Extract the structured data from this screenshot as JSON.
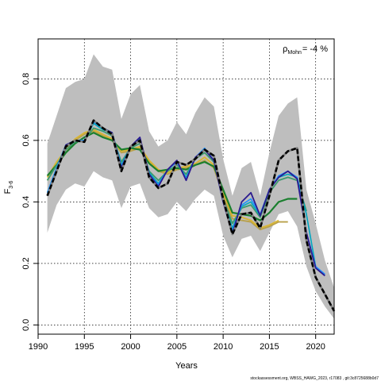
{
  "chart_data": {
    "type": "line",
    "xlabel": "Years",
    "ylabel": "F",
    "ylabel_sub": "3-6",
    "annotation": {
      "rho_symbol": "ρ",
      "rho_sub": "Mohn",
      "value_text": "= -4 %"
    },
    "footer": "stockassessment.org, WBSS_HAWG_2023, r17083 , git:3c8725688b0d7",
    "xlim": [
      1990,
      2022
    ],
    "ylim": [
      -0.03,
      0.93
    ],
    "x_ticks": [
      1990,
      1995,
      2000,
      2005,
      2010,
      2015,
      2020
    ],
    "y_ticks": [
      0.0,
      0.2,
      0.4,
      0.6,
      0.8
    ],
    "y_tick_labels": [
      "0.0",
      "0.2",
      "0.4",
      "0.6",
      "0.8"
    ],
    "grid": true,
    "colors": {
      "band": "#bebebe",
      "base": "#000000",
      "base_highlight": "#7f7f7f",
      "peel1": "#2b1a8f",
      "peel2": "#1e90ff",
      "peel3": "#00a6c0",
      "peel4": "#3c9a6e",
      "peel5": "#1a7f2e",
      "peel6": "#d9b530",
      "peel7": "#b8a04a"
    },
    "band_years": [
      1991,
      1992,
      1993,
      1994,
      1995,
      1996,
      1997,
      1998,
      1999,
      2000,
      2001,
      2002,
      2003,
      2004,
      2005,
      2006,
      2007,
      2008,
      2009,
      2010,
      2011,
      2012,
      2013,
      2014,
      2015,
      2016,
      2017,
      2018,
      2019,
      2020,
      2021,
      2022
    ],
    "band_upper": [
      0.59,
      0.68,
      0.77,
      0.79,
      0.8,
      0.88,
      0.84,
      0.83,
      0.67,
      0.75,
      0.78,
      0.63,
      0.58,
      0.6,
      0.66,
      0.62,
      0.69,
      0.74,
      0.71,
      0.54,
      0.42,
      0.51,
      0.53,
      0.42,
      0.56,
      0.68,
      0.72,
      0.74,
      0.44,
      0.33,
      0.21,
      0.12
    ],
    "band_lower": [
      0.3,
      0.39,
      0.44,
      0.46,
      0.45,
      0.5,
      0.48,
      0.47,
      0.38,
      0.45,
      0.46,
      0.38,
      0.35,
      0.36,
      0.4,
      0.37,
      0.41,
      0.44,
      0.42,
      0.29,
      0.22,
      0.28,
      0.29,
      0.24,
      0.3,
      0.36,
      0.37,
      0.32,
      0.19,
      0.11,
      0.06,
      0.02
    ],
    "series": [
      {
        "key": "peel7",
        "style": "solid",
        "width": 1.8,
        "x": [
          1991,
          1992,
          1993,
          1994,
          1995,
          1996,
          1997,
          1998,
          1999,
          2000,
          2001,
          2002,
          2003,
          2004,
          2005,
          2006,
          2007,
          2008,
          2009,
          2010,
          2011,
          2012,
          2013,
          2014,
          2015,
          2016,
          2017
        ],
        "y": [
          0.47,
          0.52,
          0.56,
          0.6,
          0.62,
          0.63,
          0.615,
          0.6,
          0.56,
          0.565,
          0.575,
          0.53,
          0.5,
          0.49,
          0.505,
          0.51,
          0.52,
          0.535,
          0.51,
          0.42,
          0.345,
          0.34,
          0.335,
          0.31,
          0.32,
          0.335,
          0.335
        ]
      },
      {
        "key": "peel6",
        "style": "solid",
        "width": 1.8,
        "x": [
          1991,
          1992,
          1993,
          1994,
          1995,
          1996,
          1997,
          1998,
          1999,
          2000,
          2001,
          2002,
          2003,
          2004,
          2005,
          2006,
          2007,
          2008,
          2009,
          2010,
          2011,
          2012,
          2013,
          2014,
          2015,
          2016
        ],
        "y": [
          0.48,
          0.53,
          0.57,
          0.605,
          0.625,
          0.635,
          0.62,
          0.605,
          0.565,
          0.57,
          0.58,
          0.535,
          0.505,
          0.495,
          0.51,
          0.515,
          0.525,
          0.545,
          0.52,
          0.43,
          0.355,
          0.35,
          0.34,
          0.315,
          0.325,
          0.34
        ]
      },
      {
        "key": "peel5",
        "style": "solid",
        "width": 2.2,
        "x": [
          1991,
          1992,
          1993,
          1994,
          1995,
          1996,
          1997,
          1998,
          1999,
          2000,
          2001,
          2002,
          2003,
          2004,
          2005,
          2006,
          2007,
          2008,
          2009,
          2010,
          2011,
          2012,
          2013,
          2014,
          2015,
          2016,
          2017,
          2018
        ],
        "y": [
          0.485,
          0.52,
          0.56,
          0.59,
          0.61,
          0.625,
          0.61,
          0.6,
          0.57,
          0.575,
          0.57,
          0.525,
          0.5,
          0.505,
          0.51,
          0.505,
          0.52,
          0.53,
          0.515,
          0.44,
          0.365,
          0.36,
          0.355,
          0.34,
          0.365,
          0.4,
          0.41,
          0.41
        ]
      },
      {
        "key": "peel4",
        "style": "solid",
        "width": 1.8,
        "x": [
          1991,
          1992,
          1993,
          1994,
          1995,
          1996,
          1997,
          1998,
          1999,
          2000,
          2001,
          2002,
          2003,
          2004,
          2005,
          2006,
          2007,
          2008,
          2009,
          2010,
          2011,
          2012,
          2013,
          2014,
          2015,
          2016,
          2017,
          2018,
          2019
        ],
        "y": [
          0.47,
          0.52,
          0.57,
          0.595,
          0.6,
          0.64,
          0.63,
          0.615,
          0.53,
          0.575,
          0.59,
          0.5,
          0.47,
          0.5,
          0.52,
          0.49,
          0.54,
          0.56,
          0.53,
          0.41,
          0.33,
          0.38,
          0.39,
          0.35,
          0.43,
          0.47,
          0.48,
          0.47,
          0.37
        ]
      },
      {
        "key": "peel3",
        "style": "solid",
        "width": 1.6,
        "x": [
          1991,
          1992,
          1993,
          1994,
          1995,
          1996,
          1997,
          1998,
          1999,
          2000,
          2001,
          2002,
          2003,
          2004,
          2005,
          2006,
          2007,
          2008,
          2009,
          2010,
          2011,
          2012,
          2013,
          2014,
          2015,
          2016,
          2017,
          2018,
          2019,
          2020
        ],
        "y": [
          0.43,
          0.51,
          0.585,
          0.6,
          0.6,
          0.655,
          0.635,
          0.625,
          0.52,
          0.58,
          0.6,
          0.495,
          0.46,
          0.505,
          0.53,
          0.48,
          0.545,
          0.57,
          0.535,
          0.405,
          0.315,
          0.385,
          0.4,
          0.355,
          0.44,
          0.48,
          0.49,
          0.48,
          0.36,
          0.19
        ]
      },
      {
        "key": "peel2",
        "style": "solid",
        "width": 1.6,
        "x": [
          1991,
          1992,
          1993,
          1994,
          1995,
          1996,
          1997,
          1998,
          1999,
          2000,
          2001,
          2002,
          2003,
          2004,
          2005,
          2006,
          2007,
          2008,
          2009,
          2010,
          2011,
          2012,
          2013,
          2014,
          2015,
          2016,
          2017,
          2018,
          2019,
          2020,
          2021
        ],
        "y": [
          0.43,
          0.51,
          0.585,
          0.6,
          0.6,
          0.66,
          0.64,
          0.625,
          0.515,
          0.58,
          0.605,
          0.49,
          0.455,
          0.505,
          0.53,
          0.475,
          0.545,
          0.575,
          0.535,
          0.4,
          0.305,
          0.39,
          0.41,
          0.36,
          0.44,
          0.485,
          0.5,
          0.48,
          0.3,
          0.19,
          0.165
        ]
      },
      {
        "key": "peel1",
        "style": "solid",
        "width": 1.8,
        "x": [
          1991,
          1992,
          1993,
          1994,
          1995,
          1996,
          1997,
          1998,
          1999,
          2000,
          2001,
          2002,
          2003,
          2004,
          2005,
          2006,
          2007,
          2008,
          2009,
          2010,
          2011,
          2012,
          2013,
          2014,
          2015,
          2016,
          2017,
          2018,
          2019,
          2020,
          2021
        ],
        "y": [
          0.42,
          0.5,
          0.585,
          0.6,
          0.595,
          0.665,
          0.64,
          0.625,
          0.51,
          0.58,
          0.61,
          0.49,
          0.45,
          0.505,
          0.535,
          0.47,
          0.545,
          0.57,
          0.535,
          0.4,
          0.295,
          0.4,
          0.43,
          0.355,
          0.44,
          0.48,
          0.5,
          0.475,
          0.3,
          0.185,
          0.16
        ]
      },
      {
        "key": "base",
        "style": "dashed",
        "width": 2.6,
        "x": [
          1991,
          1992,
          1993,
          1994,
          1995,
          1996,
          1997,
          1998,
          1999,
          2000,
          2001,
          2002,
          2003,
          2004,
          2005,
          2006,
          2007,
          2008,
          2009,
          2010,
          2011,
          2012,
          2013,
          2014,
          2015,
          2016,
          2017,
          2018,
          2019,
          2020,
          2021,
          2022
        ],
        "y": [
          0.42,
          0.5,
          0.58,
          0.6,
          0.595,
          0.665,
          0.64,
          0.62,
          0.5,
          0.58,
          0.6,
          0.48,
          0.445,
          0.46,
          0.53,
          0.52,
          0.54,
          0.57,
          0.55,
          0.41,
          0.295,
          0.36,
          0.365,
          0.315,
          0.42,
          0.535,
          0.565,
          0.575,
          0.275,
          0.155,
          0.1,
          0.045
        ]
      }
    ]
  }
}
